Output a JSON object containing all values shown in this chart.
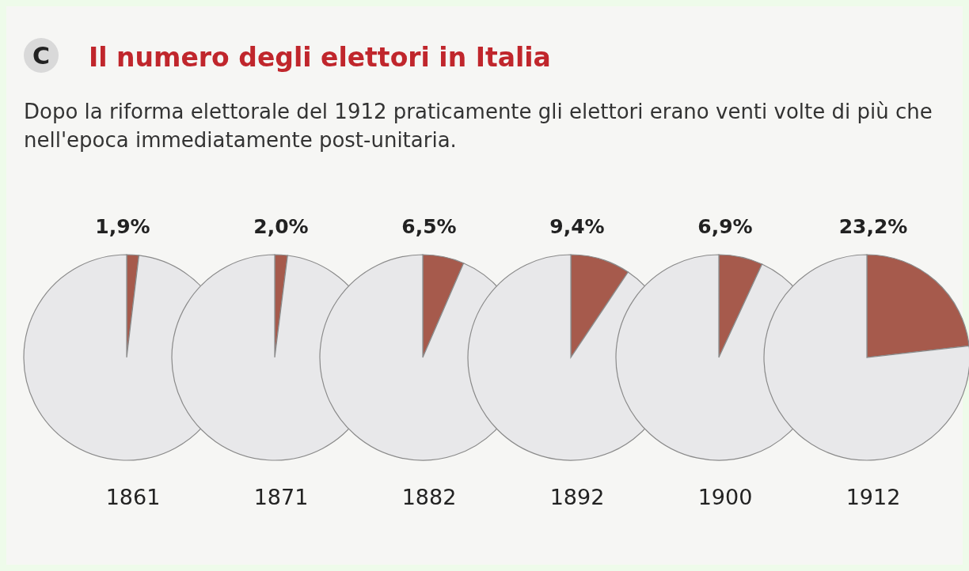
{
  "chart_data": [
    {
      "type": "pie",
      "title": "Il numero degli elettori in Italia",
      "subtitle": "Dopo la riforma elettorale del 1912 praticamente gli elettori erano venti volte di più che nell'epoca immediatamente post-unitaria.",
      "annotations": [
        "C"
      ],
      "xlabel": "1861",
      "categories": [
        null,
        null
      ],
      "values": [
        1.9,
        98.1
      ],
      "colors": [
        "#a65a4c",
        "#e8e8ea"
      ],
      "value_labels": [
        "1,9%",
        null
      ]
    },
    {
      "type": "pie",
      "xlabel": "1871",
      "categories": [
        null,
        null
      ],
      "values": [
        2.0,
        98.0
      ],
      "colors": [
        "#a65a4c",
        "#e8e8ea"
      ],
      "value_labels": [
        "2,0%",
        null
      ]
    },
    {
      "type": "pie",
      "xlabel": "1882",
      "categories": [
        null,
        null
      ],
      "values": [
        6.5,
        93.5
      ],
      "colors": [
        "#a65a4c",
        "#e8e8ea"
      ],
      "value_labels": [
        "6,5%",
        null
      ]
    },
    {
      "type": "pie",
      "xlabel": "1892",
      "categories": [
        null,
        null
      ],
      "values": [
        9.4,
        90.6
      ],
      "colors": [
        "#a65a4c",
        "#e8e8ea"
      ],
      "value_labels": [
        "9,4%",
        null
      ]
    },
    {
      "type": "pie",
      "xlabel": "1900",
      "categories": [
        null,
        null
      ],
      "values": [
        6.9,
        93.1
      ],
      "colors": [
        "#a65a4c",
        "#e8e8ea"
      ],
      "value_labels": [
        "6,9%",
        null
      ]
    },
    {
      "type": "pie",
      "xlabel": "1912",
      "categories": [
        null,
        null
      ],
      "values": [
        23.2,
        76.8
      ],
      "colors": [
        "#a65a4c",
        "#e8e8ea"
      ],
      "value_labels": [
        "23,2%",
        null
      ]
    }
  ]
}
